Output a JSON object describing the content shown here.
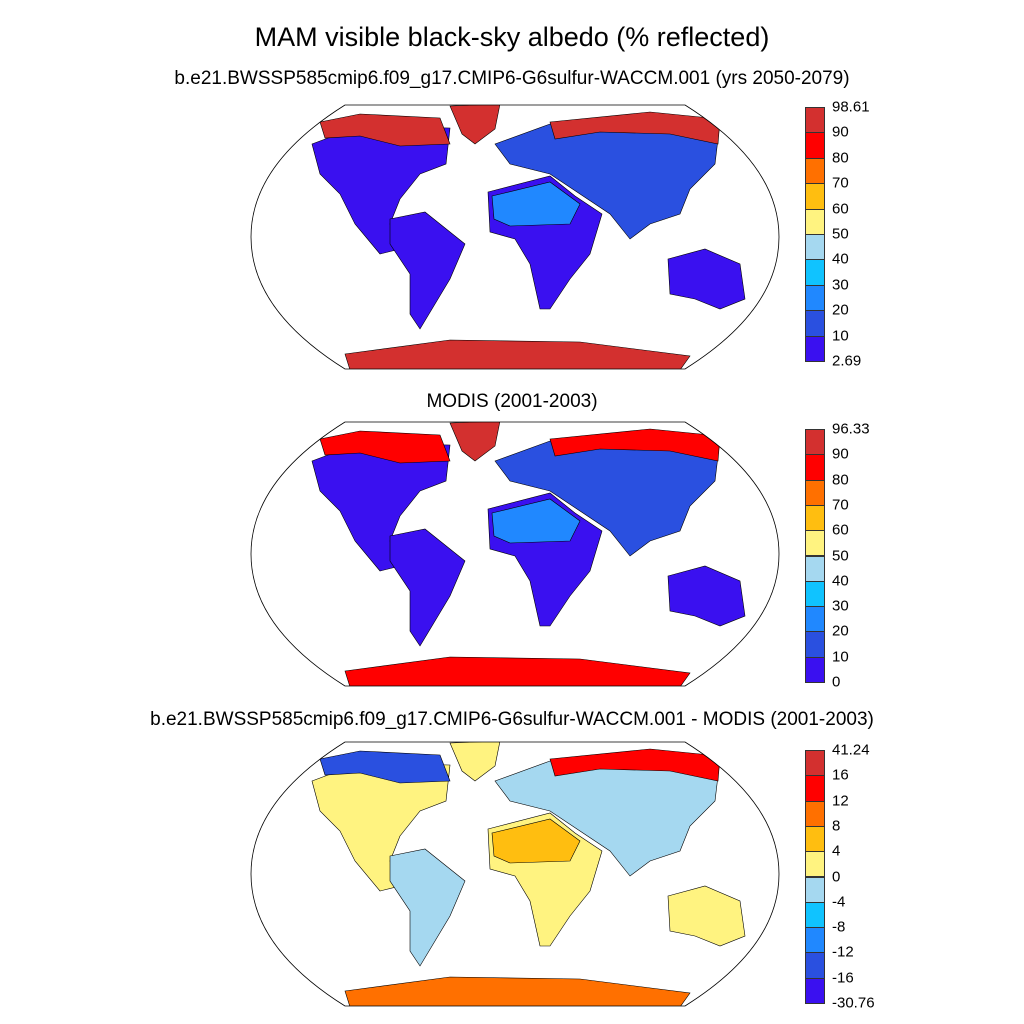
{
  "title": "MAM visible black-sky albedo (% reflected)",
  "palette": [
    "#3A10F0",
    "#2A50E0",
    "#2088FF",
    "#10C3FF",
    "#A5D8F0",
    "#FFF380",
    "#FFBE10",
    "#FF7000",
    "#FF0000",
    "#D3302F"
  ],
  "panels": [
    {
      "subtitle": "b.e21.BWSSP585cmip6.f09_g17.CMIP6-G6sulfur-WACCM.001 (yrs 2050-2079)",
      "colorbar_labels": [
        "98.61",
        "90",
        "80",
        "70",
        "60",
        "50",
        "40",
        "30",
        "20",
        "10",
        "2.69"
      ],
      "region_colors": {
        "greenland": "#D3302F",
        "arctic_na": "#D3302F",
        "north_america": "#3A10F0",
        "south_america": "#3A10F0",
        "africa": "#3A10F0",
        "sahara": "#2088FF",
        "eurasia": "#2A50E0",
        "siberia_n": "#D3302F",
        "australia": "#3A10F0",
        "antarctica": "#D3302F"
      }
    },
    {
      "subtitle": "MODIS (2001-2003)",
      "colorbar_labels": [
        "96.33",
        "90",
        "80",
        "70",
        "60",
        "50",
        "40",
        "30",
        "20",
        "10",
        "0"
      ],
      "region_colors": {
        "greenland": "#D3302F",
        "arctic_na": "#FF0000",
        "north_america": "#3A10F0",
        "south_america": "#3A10F0",
        "africa": "#3A10F0",
        "sahara": "#2088FF",
        "eurasia": "#2A50E0",
        "siberia_n": "#FF0000",
        "australia": "#3A10F0",
        "antarctica": "#FF0000"
      }
    },
    {
      "subtitle": "b.e21.BWSSP585cmip6.f09_g17.CMIP6-G6sulfur-WACCM.001 - MODIS (2001-2003)",
      "colorbar_labels": [
        "41.24",
        "16",
        "12",
        "8",
        "4",
        "0",
        "-4",
        "-8",
        "-12",
        "-16",
        "-30.76"
      ],
      "region_colors": {
        "greenland": "#FFF380",
        "arctic_na": "#2A50E0",
        "north_america": "#FFF380",
        "south_america": "#A5D8F0",
        "africa": "#FFF380",
        "sahara": "#FFBE10",
        "eurasia": "#A5D8F0",
        "siberia_n": "#FF0000",
        "australia": "#FFF380",
        "antarctica": "#FF7000"
      }
    }
  ]
}
